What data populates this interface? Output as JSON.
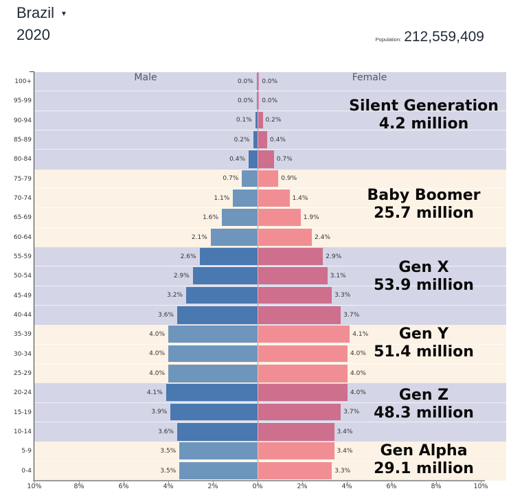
{
  "header": {
    "country": "Brazil",
    "dropdown_icon": "▼",
    "year": "2020",
    "population_label": "Population:",
    "population_value": "212,559,409"
  },
  "chart": {
    "male_header": "Male",
    "female_header": "Female"
  },
  "chart_data": {
    "type": "bar",
    "subtype": "population-pyramid-horizontal",
    "title": "Brazil 2020",
    "unit": "% of total population",
    "xlim_pct": [
      10,
      10
    ],
    "x_axis_ticks": [
      "10%",
      "8%",
      "6%",
      "4%",
      "2%",
      "0%",
      "2%",
      "4%",
      "6%",
      "8%",
      "10%"
    ],
    "age_groups_top_to_bottom": [
      "100+",
      "95-99",
      "90-94",
      "85-89",
      "80-84",
      "75-79",
      "70-74",
      "65-69",
      "60-64",
      "55-59",
      "50-54",
      "45-49",
      "40-44",
      "35-39",
      "30-34",
      "25-29",
      "20-24",
      "15-19",
      "10-14",
      "5-9",
      "0-4"
    ],
    "series": [
      {
        "name": "Male",
        "side": "left",
        "values_top_to_bottom": [
          0.0,
          0.0,
          0.1,
          0.2,
          0.4,
          0.7,
          1.1,
          1.6,
          2.1,
          2.6,
          2.9,
          3.2,
          3.6,
          4.0,
          4.0,
          4.0,
          4.1,
          3.9,
          3.6,
          3.5,
          3.5
        ]
      },
      {
        "name": "Female",
        "side": "right",
        "values_top_to_bottom": [
          0.0,
          0.0,
          0.2,
          0.4,
          0.7,
          0.9,
          1.4,
          1.9,
          2.4,
          2.9,
          3.1,
          3.3,
          3.7,
          4.1,
          4.0,
          4.0,
          4.0,
          3.7,
          3.4,
          3.4,
          3.3
        ]
      }
    ],
    "generations": [
      {
        "name": "Silent Generation",
        "total_label": "4.2 million",
        "band": "lavender",
        "rows": [
          {
            "age": "100+",
            "male": 0.0,
            "female": 0.0
          },
          {
            "age": "95-99",
            "male": 0.0,
            "female": 0.0
          },
          {
            "age": "90-94",
            "male": 0.1,
            "female": 0.2
          },
          {
            "age": "85-89",
            "male": 0.2,
            "female": 0.4
          },
          {
            "age": "80-84",
            "male": 0.4,
            "female": 0.7
          }
        ]
      },
      {
        "name": "Baby Boomer",
        "total_label": "25.7 million",
        "band": "cream",
        "rows": [
          {
            "age": "75-79",
            "male": 0.7,
            "female": 0.9
          },
          {
            "age": "70-74",
            "male": 1.1,
            "female": 1.4
          },
          {
            "age": "65-69",
            "male": 1.6,
            "female": 1.9
          },
          {
            "age": "60-64",
            "male": 2.1,
            "female": 2.4
          }
        ]
      },
      {
        "name": "Gen X",
        "total_label": "53.9 million",
        "band": "lavender",
        "rows": [
          {
            "age": "55-59",
            "male": 2.6,
            "female": 2.9
          },
          {
            "age": "50-54",
            "male": 2.9,
            "female": 3.1
          },
          {
            "age": "45-49",
            "male": 3.2,
            "female": 3.3
          },
          {
            "age": "40-44",
            "male": 3.6,
            "female": 3.7
          }
        ]
      },
      {
        "name": "Gen Y",
        "total_label": "51.4 million",
        "band": "cream",
        "rows": [
          {
            "age": "35-39",
            "male": 4.0,
            "female": 4.1
          },
          {
            "age": "30-34",
            "male": 4.0,
            "female": 4.0
          },
          {
            "age": "25-29",
            "male": 4.0,
            "female": 4.0
          }
        ]
      },
      {
        "name": "Gen Z",
        "total_label": "48.3 million",
        "band": "lavender",
        "rows": [
          {
            "age": "20-24",
            "male": 4.1,
            "female": 4.0
          },
          {
            "age": "15-19",
            "male": 3.9,
            "female": 3.7
          },
          {
            "age": "10-14",
            "male": 3.6,
            "female": 3.4
          }
        ]
      },
      {
        "name": "Gen Alpha",
        "total_label": "29.1 million",
        "band": "cream",
        "rows": [
          {
            "age": "5-9",
            "male": 3.5,
            "female": 3.4
          },
          {
            "age": "0-4",
            "male": 3.5,
            "female": 3.3
          }
        ]
      }
    ],
    "colors": {
      "male_dark": "#4a78b0",
      "male_light": "#6e96bd",
      "female_dark": "#cd6f8d",
      "female_light": "#f18e94",
      "band_lavender": "#d4d6e7",
      "band_cream": "#fcf2e5"
    },
    "legend_position": "in-plot-headers"
  }
}
